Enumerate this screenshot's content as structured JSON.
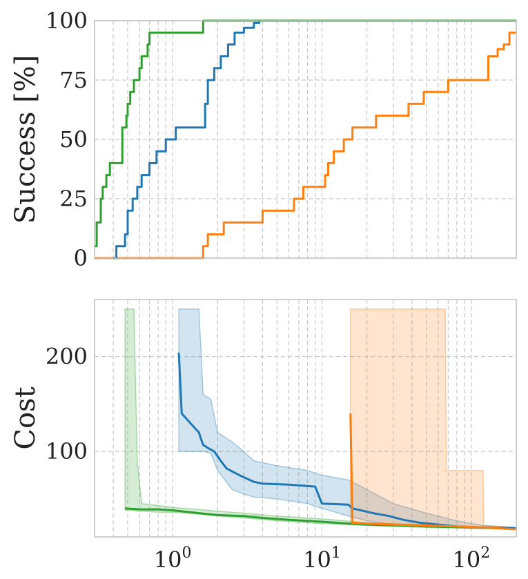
{
  "chart_data": [
    {
      "type": "line",
      "ylabel": "Success [%]",
      "xscale": "log",
      "xlim": [
        0.3,
        200
      ],
      "ylim": [
        0,
        100
      ],
      "yticks": [
        "0",
        "25",
        "50",
        "75",
        "100"
      ],
      "grid": true,
      "series": [
        {
          "color": "#2ca02c",
          "x": [
            0.3,
            0.31,
            0.33,
            0.34,
            0.36,
            0.38,
            0.4,
            0.45,
            0.46,
            0.49,
            0.5,
            0.52,
            0.55,
            0.6,
            0.62,
            0.68,
            0.7,
            1.6
          ],
          "y": [
            5,
            15,
            25,
            30,
            35,
            40,
            40,
            40,
            55,
            60,
            65,
            70,
            75,
            80,
            85,
            90,
            95,
            100
          ]
        },
        {
          "color": "#1f77b4",
          "x": [
            0.4,
            0.42,
            0.48,
            0.5,
            0.54,
            0.58,
            0.62,
            0.7,
            0.78,
            0.9,
            1.05,
            1.6,
            1.65,
            1.72,
            1.9,
            2.1,
            2.35,
            2.6,
            3.0,
            3.5,
            3.8
          ],
          "y": [
            0,
            5,
            10,
            20,
            25,
            30,
            35,
            40,
            45,
            50,
            55,
            55,
            65,
            75,
            80,
            85,
            90,
            95,
            97,
            99,
            100
          ]
        },
        {
          "color": "#ff7f0e",
          "x": [
            0.3,
            1.55,
            1.6,
            1.72,
            2.2,
            2.5,
            4.0,
            5.0,
            6.5,
            7.5,
            10.5,
            11.0,
            12.0,
            14.0,
            16.0,
            23.0,
            28.0,
            38.0,
            48.0,
            70.0,
            120.0,
            130.0,
            150.0,
            165.0,
            180.0,
            200.0
          ],
          "y": [
            0,
            0,
            5,
            10,
            15,
            15,
            20,
            20,
            25,
            30,
            35,
            40,
            45,
            50,
            55,
            60,
            60,
            65,
            70,
            75,
            75,
            85,
            88,
            90,
            95,
            95
          ]
        }
      ]
    },
    {
      "type": "line",
      "ylabel": "Cost",
      "xscale": "log",
      "xlim": [
        0.3,
        200
      ],
      "ylim": [
        10,
        260
      ],
      "yticks": [
        "100",
        "200"
      ],
      "xticks": [
        {
          "base": "10",
          "exp": "0"
        },
        {
          "base": "10",
          "exp": "1"
        },
        {
          "base": "10",
          "exp": "2"
        }
      ],
      "grid": true,
      "series": [
        {
          "color": "#2ca02c",
          "x": [
            0.48,
            0.6,
            0.8,
            1.0,
            1.5,
            2.0,
            3.0,
            4.0,
            6.0,
            10.0,
            15.0,
            20.0,
            50.0,
            100.0,
            200.0
          ],
          "y": [
            40,
            39,
            39,
            38,
            35,
            33,
            32,
            30,
            28,
            26,
            24,
            23,
            21,
            20,
            19
          ],
          "band_x": [
            0.48,
            0.5,
            0.55,
            0.58,
            0.62,
            0.8,
            1.0,
            1.5,
            2.0,
            3.0,
            5.0,
            10.0,
            20.0,
            50.0,
            100.0,
            200.0
          ],
          "band_upper": [
            250,
            250,
            250,
            90,
            45,
            43,
            41,
            39,
            37,
            35,
            32,
            29,
            25,
            22,
            20,
            19
          ],
          "band_lower": [
            38,
            38,
            38,
            37,
            37,
            36,
            36,
            34,
            32,
            30,
            27,
            24,
            22,
            20,
            19,
            18
          ]
        },
        {
          "color": "#1f77b4",
          "x": [
            1.1,
            1.15,
            1.4,
            1.5,
            1.55,
            1.6,
            1.75,
            1.9,
            2.1,
            2.3,
            2.8,
            3.5,
            4.0,
            6.0,
            9.0,
            10.0,
            15.0,
            16.0,
            22.0,
            28.0,
            35.0,
            45.0,
            60.0,
            80.0,
            120.0,
            200.0
          ],
          "y": [
            204,
            140,
            125,
            120,
            113,
            107,
            103,
            100,
            90,
            82,
            75,
            68,
            66,
            65,
            63,
            45,
            44,
            40,
            35,
            32,
            28,
            25,
            23,
            21,
            20,
            19
          ],
          "band_x": [
            1.1,
            1.5,
            1.6,
            1.8,
            2.0,
            2.5,
            3.0,
            3.5,
            5.0,
            8.0,
            10.0,
            15.0,
            20.0,
            30.0,
            50.0,
            80.0,
            120.0,
            200.0
          ],
          "band_upper": [
            250,
            250,
            160,
            155,
            120,
            110,
            100,
            90,
            85,
            80,
            75,
            70,
            60,
            45,
            35,
            27,
            22,
            20
          ],
          "band_lower": [
            100,
            100,
            100,
            98,
            80,
            60,
            55,
            52,
            50,
            45,
            40,
            32,
            27,
            23,
            21,
            20,
            19,
            18
          ]
        },
        {
          "color": "#ff7f0e",
          "x": [
            15.5,
            16.0,
            20.0,
            30.0,
            50.0,
            80.0,
            120.0,
            200.0
          ],
          "y": [
            140,
            25,
            24,
            23,
            22,
            21,
            20,
            18
          ],
          "band_x": [
            15.5,
            30.0,
            50.0,
            67.0,
            68.0,
            120.0,
            121.0,
            200.0
          ],
          "band_upper": [
            250,
            250,
            250,
            250,
            80,
            80,
            22,
            20
          ],
          "band_lower": [
            25,
            24,
            23,
            22,
            21,
            20,
            19,
            18
          ]
        }
      ]
    }
  ]
}
